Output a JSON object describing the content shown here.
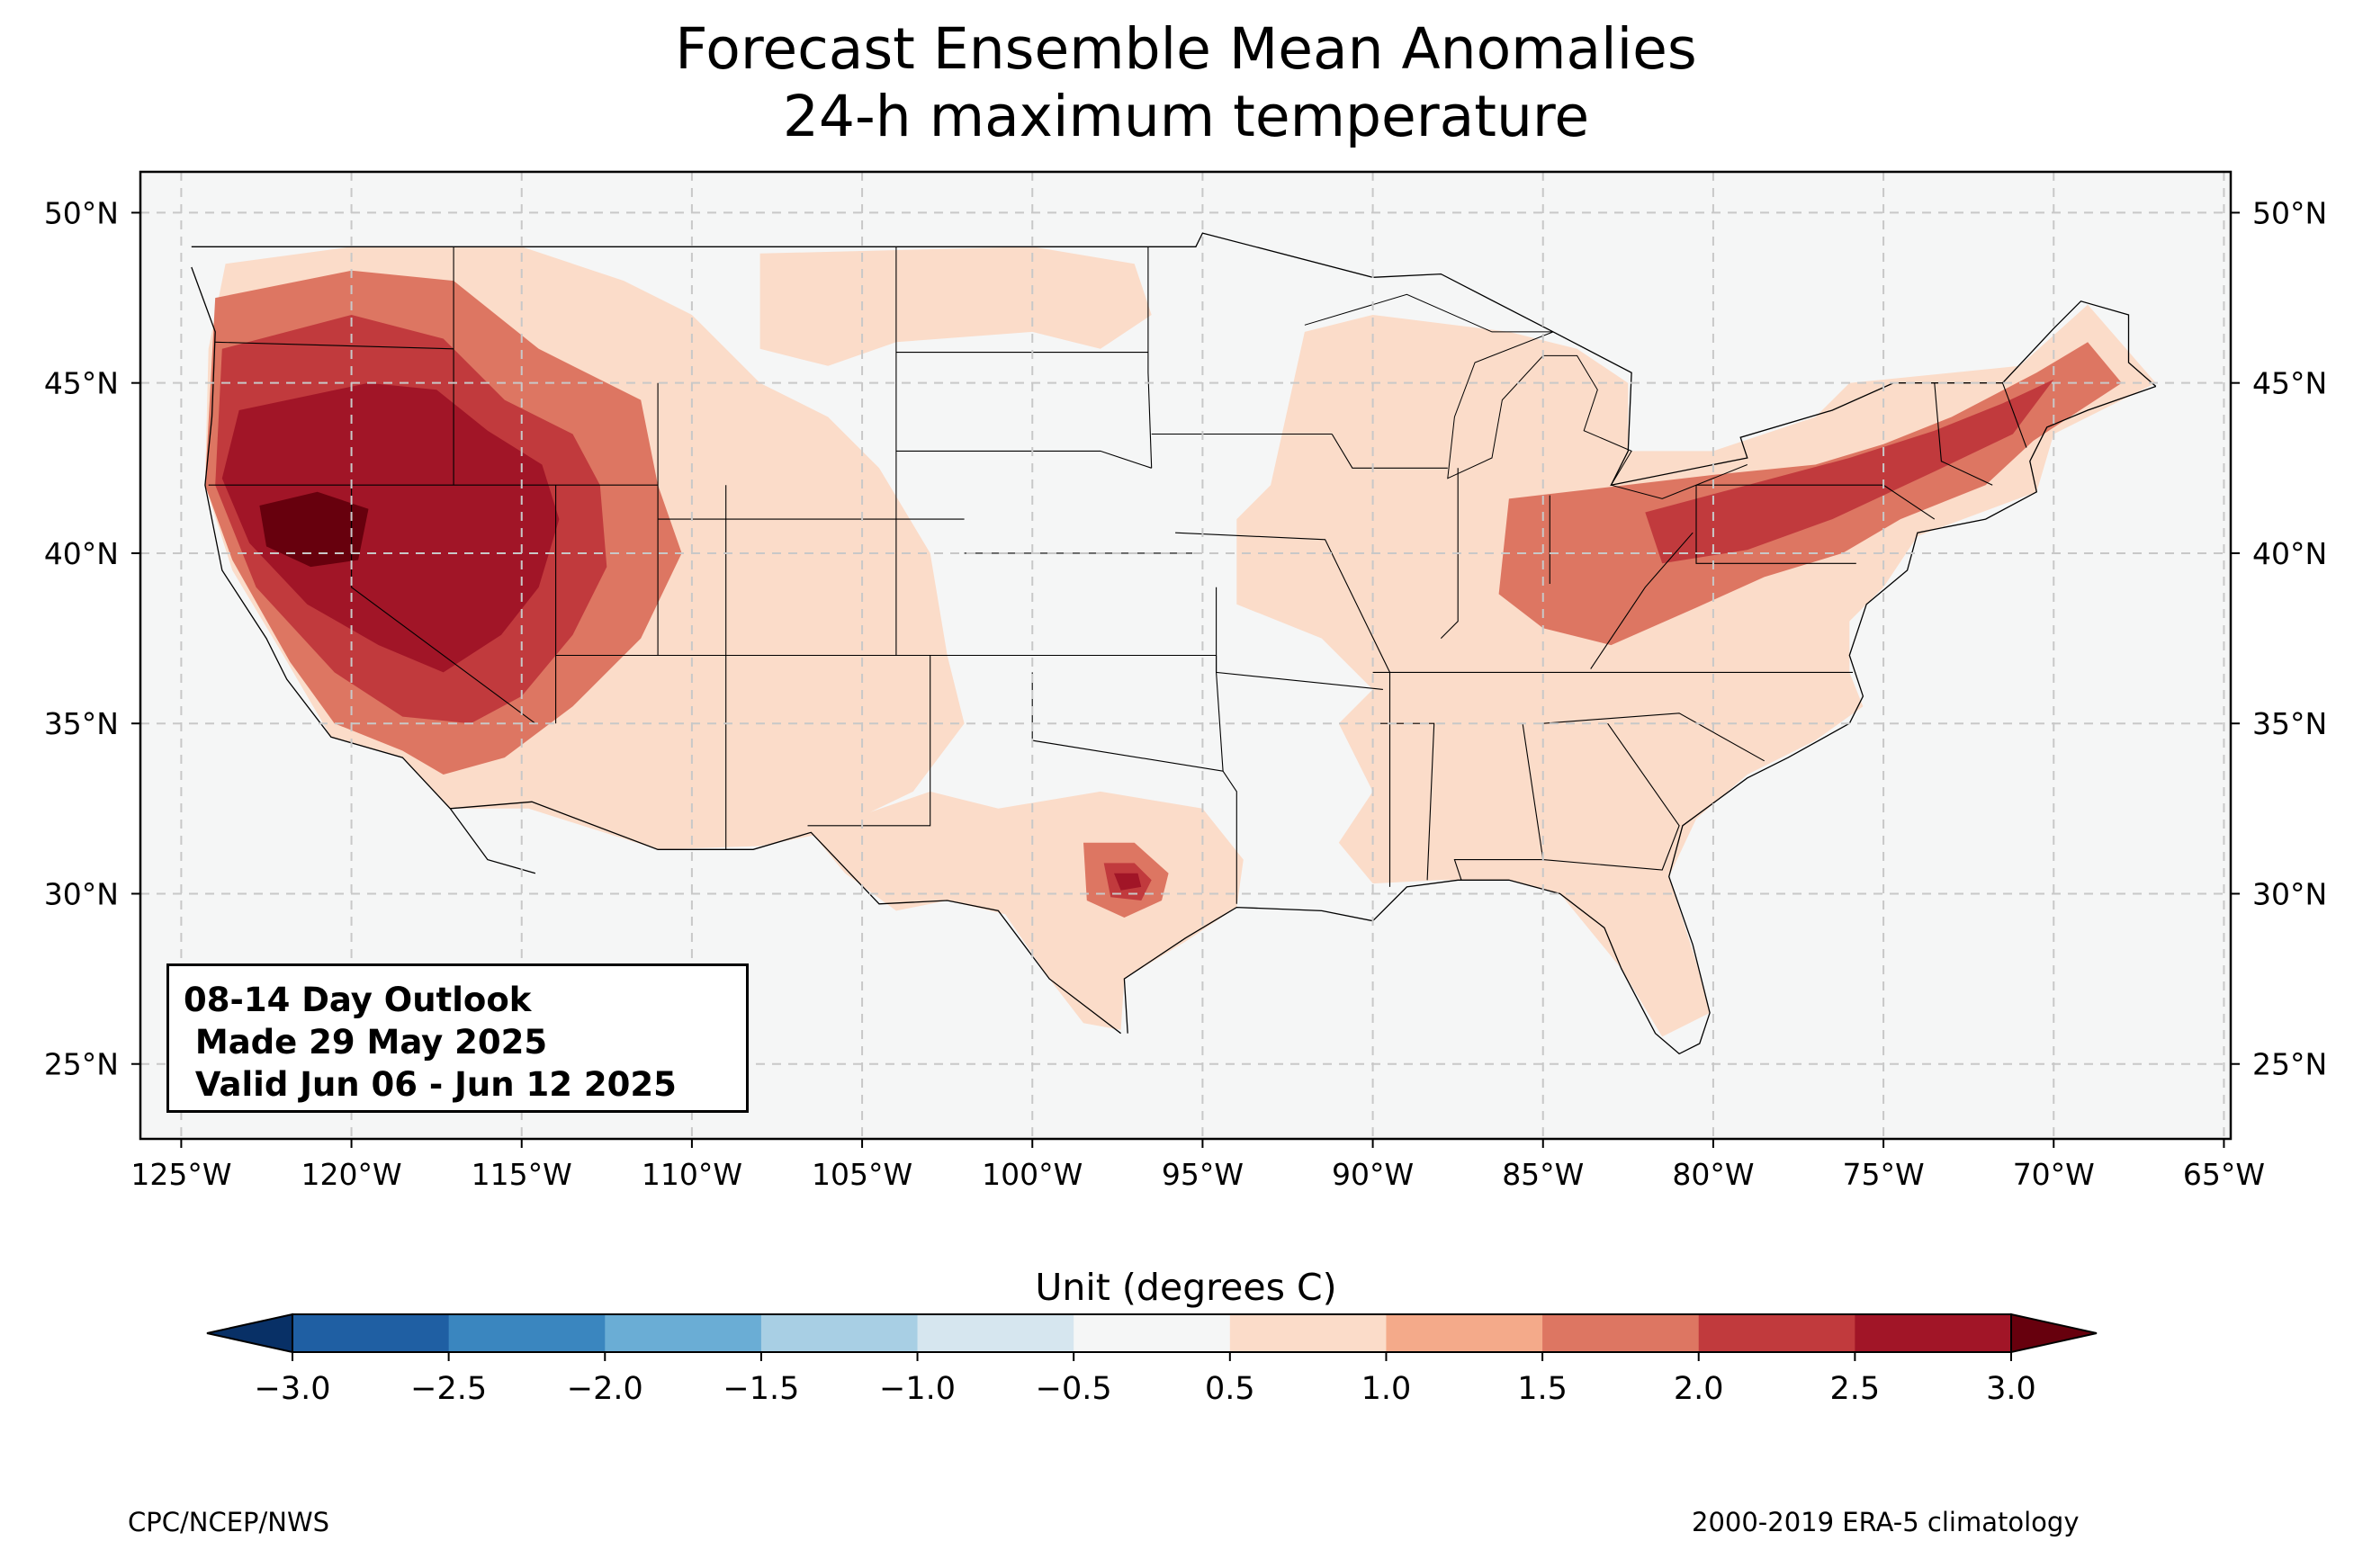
{
  "title_line1": "Forecast Ensemble Mean Anomalies",
  "title_line2": "24-h maximum temperature",
  "outlook": {
    "line1": "08-14 Day Outlook",
    "line2": " Made 29 May 2025",
    "line3": " Valid Jun 06 - Jun 12 2025"
  },
  "colorbar": {
    "label": "Unit (degrees C)",
    "ticks": [
      "−3.0",
      "−2.5",
      "−2.0",
      "−1.5",
      "−1.0",
      "−0.5",
      "0.5",
      "1.0",
      "1.5",
      "2.0",
      "2.5",
      "3.0"
    ],
    "levels": [
      -3.0,
      -2.5,
      -2.0,
      -1.5,
      -1.0,
      -0.5,
      0.5,
      1.0,
      1.5,
      2.0,
      2.5,
      3.0
    ],
    "colors": [
      "#1f5fa3",
      "#3a86bf",
      "#6aadd5",
      "#a8cfe4",
      "#d6e6ef",
      "#f5f6f6",
      "#fbdcc9",
      "#f4aa8a",
      "#dd7662",
      "#c13a3d",
      "#a11527"
    ],
    "under_color": "#083066",
    "over_color": "#67000d"
  },
  "footer": {
    "left": "CPC/NCEP/NWS",
    "right": "2000-2019 ERA-5 climatology"
  },
  "map": {
    "projection": "PlateCarree",
    "lon_range": [
      -126.2,
      -64.8
    ],
    "lat_range": [
      22.8,
      51.2
    ],
    "lon_ticks": [
      "125°W",
      "120°W",
      "115°W",
      "110°W",
      "105°W",
      "100°W",
      "95°W",
      "90°W",
      "85°W",
      "80°W",
      "75°W",
      "70°W",
      "65°W"
    ],
    "lon_values": [
      -125,
      -120,
      -115,
      -110,
      -105,
      -100,
      -95,
      -90,
      -85,
      -80,
      -75,
      -70,
      -65
    ],
    "lat_ticks": [
      "25°N",
      "30°N",
      "35°N",
      "40°N",
      "45°N",
      "50°N"
    ],
    "lat_values": [
      25,
      30,
      35,
      40,
      45,
      50
    ],
    "gridlines": "dashed",
    "background_color": "#f5f6f6",
    "anomaly_regions": [
      {
        "level": 1.0,
        "color": "#fbdcc9",
        "name": "west-broad",
        "poly": [
          [
            -124.3,
            42
          ],
          [
            -124.2,
            46
          ],
          [
            -123.7,
            48.5
          ],
          [
            -120,
            49
          ],
          [
            -115,
            49
          ],
          [
            -112,
            48
          ],
          [
            -110,
            47
          ],
          [
            -108,
            45
          ],
          [
            -106,
            44
          ],
          [
            -104.5,
            42.5
          ],
          [
            -103,
            40
          ],
          [
            -102.5,
            37
          ],
          [
            -102,
            35
          ],
          [
            -103.5,
            33
          ],
          [
            -106,
            31.8
          ],
          [
            -108,
            31.4
          ],
          [
            -111,
            31.3
          ],
          [
            -114.8,
            32.5
          ],
          [
            -117.1,
            32.5
          ],
          [
            -118.5,
            34
          ],
          [
            -120.6,
            34.6
          ],
          [
            -122,
            37
          ],
          [
            -123.5,
            39.5
          ]
        ]
      },
      {
        "level": 1.0,
        "color": "#fbdcc9",
        "name": "northern-plains",
        "poly": [
          [
            -108,
            48.8
          ],
          [
            -100,
            49
          ],
          [
            -97,
            48.5
          ],
          [
            -96.5,
            47
          ],
          [
            -98,
            46
          ],
          [
            -100,
            46.5
          ],
          [
            -104,
            46.2
          ],
          [
            -106,
            45.5
          ],
          [
            -108,
            46
          ]
        ]
      },
      {
        "level": 1.0,
        "color": "#fbdcc9",
        "name": "texas-broad",
        "poly": [
          [
            -106.5,
            31.8
          ],
          [
            -103,
            33
          ],
          [
            -101,
            32.5
          ],
          [
            -98,
            33
          ],
          [
            -95,
            32.5
          ],
          [
            -93.8,
            31
          ],
          [
            -94,
            29.6
          ],
          [
            -95.5,
            28.6
          ],
          [
            -97.3,
            27.5
          ],
          [
            -97.4,
            26
          ],
          [
            -98.5,
            26.2
          ],
          [
            -99.5,
            27.5
          ],
          [
            -100.8,
            29.4
          ],
          [
            -102.5,
            29.8
          ],
          [
            -104,
            29.5
          ],
          [
            -105.5,
            30.6
          ]
        ]
      },
      {
        "level": 1.0,
        "color": "#fbdcc9",
        "name": "midwest-east",
        "poly": [
          [
            -93,
            42
          ],
          [
            -92,
            46.5
          ],
          [
            -90,
            47
          ],
          [
            -86,
            46.5
          ],
          [
            -84,
            46
          ],
          [
            -82.5,
            45
          ],
          [
            -82.5,
            43
          ],
          [
            -80,
            43
          ],
          [
            -77,
            44
          ],
          [
            -76,
            45
          ],
          [
            -71,
            45.5
          ],
          [
            -69,
            47.3
          ],
          [
            -67,
            45
          ],
          [
            -70,
            43.5
          ],
          [
            -70.5,
            41.8
          ],
          [
            -74,
            40.5
          ],
          [
            -75,
            39
          ],
          [
            -76,
            38
          ],
          [
            -76,
            36.5
          ],
          [
            -75.6,
            35.5
          ],
          [
            -77,
            34.5
          ],
          [
            -79,
            33.5
          ],
          [
            -80.5,
            32.2
          ],
          [
            -81.3,
            30.5
          ],
          [
            -80.5,
            28
          ],
          [
            -80.1,
            26.5
          ],
          [
            -81.5,
            25.8
          ],
          [
            -82.7,
            27.8
          ],
          [
            -84.5,
            30
          ],
          [
            -86,
            30.4
          ],
          [
            -88,
            30.4
          ],
          [
            -90,
            30.3
          ],
          [
            -91,
            31.5
          ],
          [
            -90,
            33
          ],
          [
            -91,
            35
          ],
          [
            -90,
            36
          ],
          [
            -91.5,
            37.5
          ],
          [
            -94,
            38.5
          ],
          [
            -94,
            41
          ]
        ]
      }
    ],
    "hotspots": [
      {
        "name": "great-basin",
        "levels": [
          1.5,
          2.0,
          2.5,
          3.0
        ],
        "rings": [
          [
            [
              -124,
              47.5
            ],
            [
              -120,
              48.3
            ],
            [
              -117,
              48
            ],
            [
              -114.5,
              46
            ],
            [
              -111.5,
              44.5
            ],
            [
              -111,
              42
            ],
            [
              -110.3,
              40
            ],
            [
              -111.5,
              37.5
            ],
            [
              -113.5,
              35.5
            ],
            [
              -115.5,
              34
            ],
            [
              -117.3,
              33.5
            ],
            [
              -118.5,
              34.2
            ],
            [
              -120.5,
              35
            ],
            [
              -121.8,
              36.8
            ],
            [
              -123.5,
              39.8
            ],
            [
              -124.3,
              42
            ]
          ],
          [
            [
              -123.8,
              46
            ],
            [
              -120,
              47
            ],
            [
              -117.3,
              46.3
            ],
            [
              -115.5,
              44.5
            ],
            [
              -113.5,
              43.5
            ],
            [
              -112.7,
              42
            ],
            [
              -112.5,
              39.6
            ],
            [
              -113.5,
              37.6
            ],
            [
              -115,
              35.8
            ],
            [
              -116.5,
              35
            ],
            [
              -118.5,
              35.2
            ],
            [
              -120.5,
              36.5
            ],
            [
              -122.8,
              39
            ],
            [
              -124,
              42
            ]
          ],
          [
            [
              -123.3,
              44.2
            ],
            [
              -119.5,
              45
            ],
            [
              -117.5,
              44.8
            ],
            [
              -116,
              43.6
            ],
            [
              -114.4,
              42.6
            ],
            [
              -113.9,
              41
            ],
            [
              -114.5,
              39
            ],
            [
              -115.6,
              37.6
            ],
            [
              -117.3,
              36.5
            ],
            [
              -119.2,
              37.3
            ],
            [
              -121.3,
              38.5
            ],
            [
              -123,
              40.3
            ],
            [
              -123.8,
              42.2
            ]
          ],
          [
            [
              -122.7,
              41.4
            ],
            [
              -121,
              41.8
            ],
            [
              -119.5,
              41.3
            ],
            [
              -119.8,
              39.8
            ],
            [
              -121.2,
              39.6
            ],
            [
              -122.5,
              40.2
            ]
          ]
        ]
      },
      {
        "name": "texas",
        "levels": [
          1.5,
          2.0,
          2.5
        ],
        "rings": [
          [
            [
              -98.5,
              31.5
            ],
            [
              -97,
              31.5
            ],
            [
              -96,
              30.6
            ],
            [
              -96.2,
              29.8
            ],
            [
              -97.3,
              29.3
            ],
            [
              -98.4,
              29.8
            ]
          ],
          [
            [
              -97.9,
              30.9
            ],
            [
              -97,
              30.9
            ],
            [
              -96.5,
              30.4
            ],
            [
              -96.8,
              29.8
            ],
            [
              -97.7,
              29.9
            ]
          ],
          [
            [
              -97.6,
              30.6
            ],
            [
              -96.9,
              30.6
            ],
            [
              -96.8,
              30.2
            ],
            [
              -97.4,
              30.1
            ]
          ]
        ]
      },
      {
        "name": "ohio-valley",
        "levels": [
          1.5,
          2.0
        ],
        "rings": [
          [
            [
              -86,
              41.6
            ],
            [
              -80,
              42.3
            ],
            [
              -77,
              42.6
            ],
            [
              -75,
              43.2
            ],
            [
              -73,
              44
            ],
            [
              -70.5,
              45.3
            ],
            [
              -69,
              46.2
            ],
            [
              -68,
              45
            ],
            [
              -70.6,
              43.3
            ],
            [
              -72,
              42
            ],
            [
              -74.5,
              41
            ],
            [
              -76.2,
              40
            ],
            [
              -78.5,
              39.3
            ],
            [
              -80.5,
              38.4
            ],
            [
              -83,
              37.3
            ],
            [
              -85,
              37.8
            ],
            [
              -86.3,
              38.8
            ]
          ],
          [
            [
              -82,
              41.2
            ],
            [
              -79,
              42
            ],
            [
              -76,
              42.8
            ],
            [
              -73.5,
              43.6
            ],
            [
              -71.5,
              44.4
            ],
            [
              -70,
              45.1
            ],
            [
              -71.2,
              43.5
            ],
            [
              -73.5,
              42.4
            ],
            [
              -76.5,
              41
            ],
            [
              -79,
              40.1
            ],
            [
              -81.5,
              39.7
            ]
          ]
        ]
      }
    ],
    "cold_spots": [
      {
        "name": "kansas-cold-spot",
        "level": -0.5,
        "poly": [
          [
            -99.6,
            36.6
          ],
          [
            -99.1,
            36.2
          ],
          [
            -99.3,
            35.6
          ],
          [
            -99.9,
            36
          ]
        ]
      }
    ]
  }
}
